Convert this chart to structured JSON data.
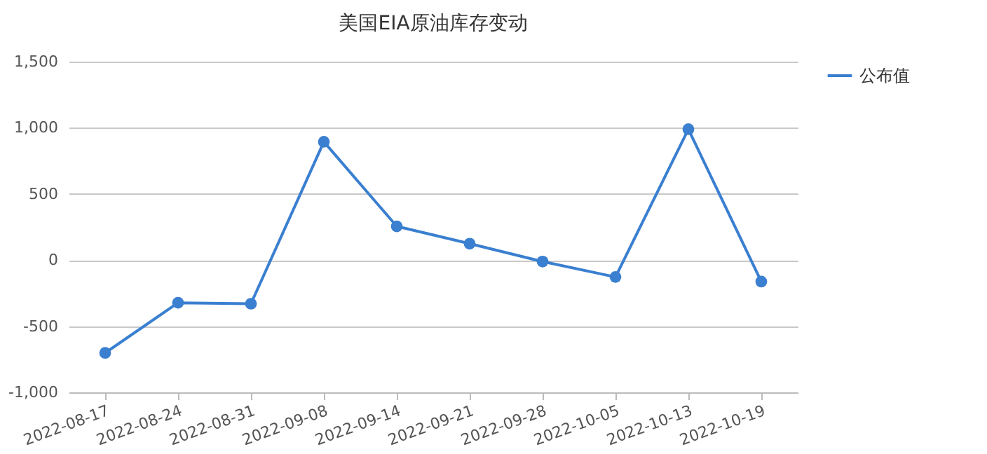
{
  "chart_data": {
    "type": "line",
    "title": "美国EIA原油库存变动",
    "categories": [
      "2022-08-17",
      "2022-08-24",
      "2022-08-31",
      "2022-09-08",
      "2022-09-14",
      "2022-09-21",
      "2022-09-28",
      "2022-10-05",
      "2022-10-13",
      "2022-10-19"
    ],
    "series": [
      {
        "name": "公布值",
        "color": "#3a7fd0",
        "values": [
          -702,
          -323,
          -330,
          894,
          255,
          124,
          -11,
          -128,
          989,
          -163
        ]
      }
    ],
    "ylim": [
      -1000,
      1500
    ],
    "yticks": [
      {
        "value": -1000,
        "label": "-1,000"
      },
      {
        "value": -500,
        "label": "-500"
      },
      0,
      500,
      {
        "value": 1000,
        "label": "1,000"
      },
      {
        "value": 1500,
        "label": "1,500"
      }
    ],
    "grid": "y",
    "legend": "right",
    "marker": "circle",
    "line_style": "solid"
  }
}
